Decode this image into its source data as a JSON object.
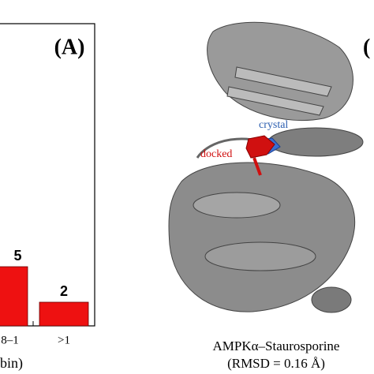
{
  "chart_data": {
    "type": "bar",
    "panel_label": "(A)",
    "categories": [
      "8–1",
      ">1"
    ],
    "values": [
      5,
      2
    ],
    "color": "#ee1111",
    "x_label": "bin)"
  },
  "panel_b": {
    "label": "(",
    "crystal_label": "crystal",
    "docked_label": "docked",
    "caption": [
      "AMPKα–Staurosporine",
      "(RMSD = 0.16 Å)"
    ]
  }
}
